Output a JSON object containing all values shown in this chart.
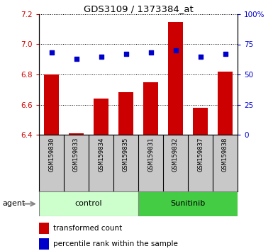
{
  "title": "GDS3109 / 1373384_at",
  "samples": [
    "GSM159830",
    "GSM159833",
    "GSM159834",
    "GSM159835",
    "GSM159831",
    "GSM159832",
    "GSM159837",
    "GSM159838"
  ],
  "groups": [
    "control",
    "control",
    "control",
    "control",
    "Sunitinib",
    "Sunitinib",
    "Sunitinib",
    "Sunitinib"
  ],
  "transformed_count": [
    6.8,
    6.41,
    6.64,
    6.68,
    6.75,
    7.15,
    6.58,
    6.82
  ],
  "percentile_rank": [
    68,
    63,
    65,
    67,
    68,
    70,
    65,
    67
  ],
  "ylim_left": [
    6.4,
    7.2
  ],
  "ylim_right": [
    0,
    100
  ],
  "yticks_left": [
    6.4,
    6.6,
    6.8,
    7.0,
    7.2
  ],
  "yticks_right": [
    0,
    25,
    50,
    75,
    100
  ],
  "bar_color": "#cc0000",
  "dot_color": "#0000cc",
  "control_color_light": "#ccffcc",
  "sunitinib_color": "#44cc44",
  "gray_color": "#c8c8c8",
  "left_axis_color": "#cc0000",
  "right_axis_color": "#0000cc",
  "legend_bar_label": "transformed count",
  "legend_dot_label": "percentile rank within the sample",
  "group_label": "agent"
}
